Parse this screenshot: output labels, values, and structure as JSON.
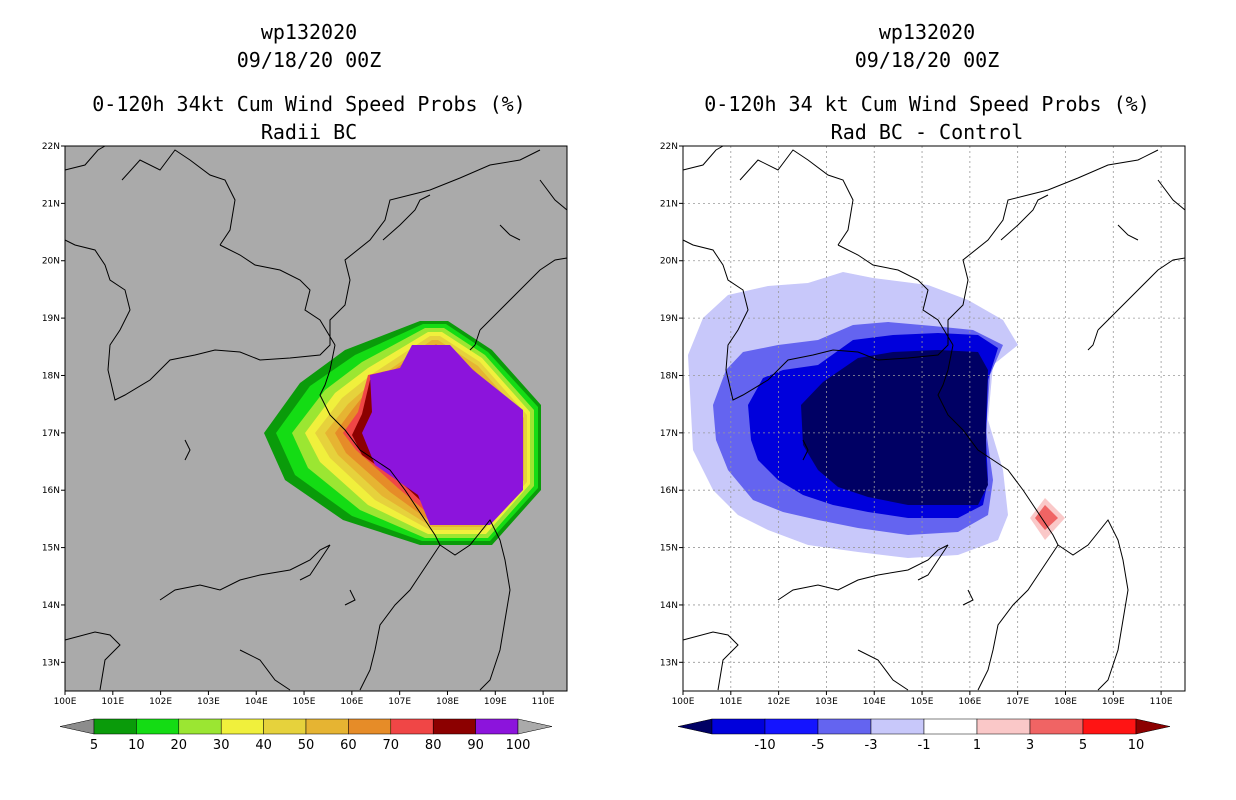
{
  "left": {
    "title_storm": "wp132020",
    "title_time": "09/18/20 00Z",
    "title_product": "0-120h 34kt Cum Wind Speed Probs (%)",
    "title_sub": "Radii BC",
    "lat_labels": [
      "22N",
      "21N",
      "20N",
      "19N",
      "18N",
      "17N",
      "16N",
      "15N",
      "14N",
      "13N"
    ],
    "lon_labels": [
      "100E",
      "101E",
      "102E",
      "103E",
      "104E",
      "105E",
      "106E",
      "107E",
      "108E",
      "109E",
      "110E"
    ],
    "colorbar": {
      "labels": [
        "5",
        "10",
        "20",
        "30",
        "40",
        "50",
        "60",
        "70",
        "80",
        "90",
        "100"
      ],
      "colors": [
        "#8c8c8c",
        "#0a9b0a",
        "#14dc14",
        "#9be632",
        "#f0f03c",
        "#e6d23c",
        "#e6b432",
        "#e68c28",
        "#f04646",
        "#8c0000",
        "#8c14dc",
        "#aaaaaa"
      ]
    },
    "background_color": "#aaaaaa"
  },
  "right": {
    "title_storm": "wp132020",
    "title_time": "09/18/20 00Z",
    "title_product": "0-120h 34 kt Cum Wind Speed Probs (%)",
    "title_sub": "Rad BC - Control",
    "lat_labels": [
      "22N",
      "21N",
      "20N",
      "19N",
      "18N",
      "17N",
      "16N",
      "15N",
      "14N",
      "13N"
    ],
    "lon_labels": [
      "100E",
      "101E",
      "102E",
      "103E",
      "104E",
      "105E",
      "106E",
      "107E",
      "108E",
      "109E",
      "110E"
    ],
    "colorbar": {
      "labels": [
        "-10",
        "-5",
        "-3",
        "-1",
        "1",
        "3",
        "5",
        "10"
      ],
      "colors": [
        "#000064",
        "#0000dc",
        "#1414ff",
        "#6464f0",
        "#c8c8fa",
        "#ffffff",
        "#fac8c8",
        "#f06464",
        "#ff1414",
        "#8c0000"
      ]
    }
  }
}
